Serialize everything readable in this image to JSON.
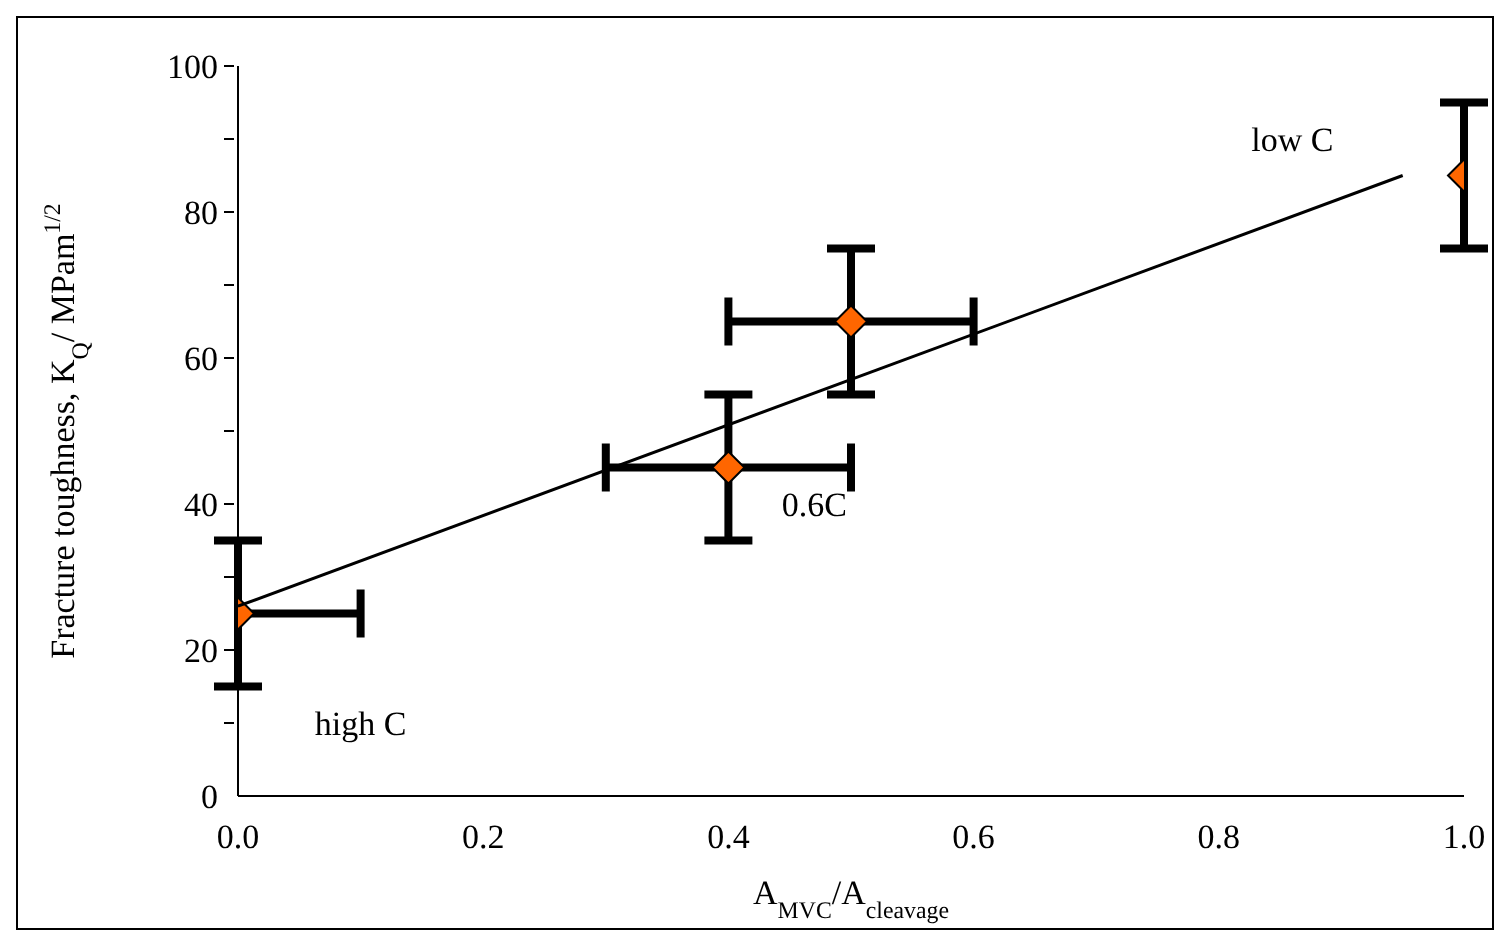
{
  "chart_data": {
    "type": "scatter",
    "xlabel": "A$_{MVC}$/A$_{cleavage}$",
    "ylabel": "Fracture toughness, K$_{Q}$/ MPam$^{1/2}$",
    "xlim": [
      0,
      1
    ],
    "xticks": [
      {
        "value": 0,
        "label": "0.0"
      },
      {
        "value": 0.2,
        "label": "0.2"
      },
      {
        "value": 0.4,
        "label": "0.4"
      },
      {
        "value": 0.6,
        "label": "0.6"
      },
      {
        "value": 0.8,
        "label": "0.8"
      },
      {
        "value": 1,
        "label": "1.0"
      }
    ],
    "ylim": [
      0,
      100
    ],
    "yticks": [
      0,
      {
        "value": 10,
        "label": null
      },
      20,
      {
        "value": 30,
        "label": null
      },
      40,
      {
        "value": 50,
        "label": null
      },
      60,
      {
        "value": 70,
        "label": null
      },
      80,
      {
        "value": 90,
        "label": null
      },
      100
    ],
    "grid": false,
    "marker": "diamond",
    "series": [
      {
        "color": "#ff6600",
        "x": [
          0,
          0.4,
          0.5,
          1
        ],
        "values": [
          25,
          45,
          65,
          85
        ],
        "errors": [
          10,
          10,
          10,
          10
        ],
        "xerrors": [
          [
            0,
            0.1
          ],
          0.1,
          0.1,
          null
        ]
      },
      {
        "type": "line",
        "color": "#000000",
        "x": [
          0,
          0.95
        ],
        "values": [
          26,
          85
        ],
        "marker": "none",
        "line_style": "solid"
      }
    ],
    "annotations": [
      "low C",
      "0.6C",
      "high C"
    ]
  }
}
